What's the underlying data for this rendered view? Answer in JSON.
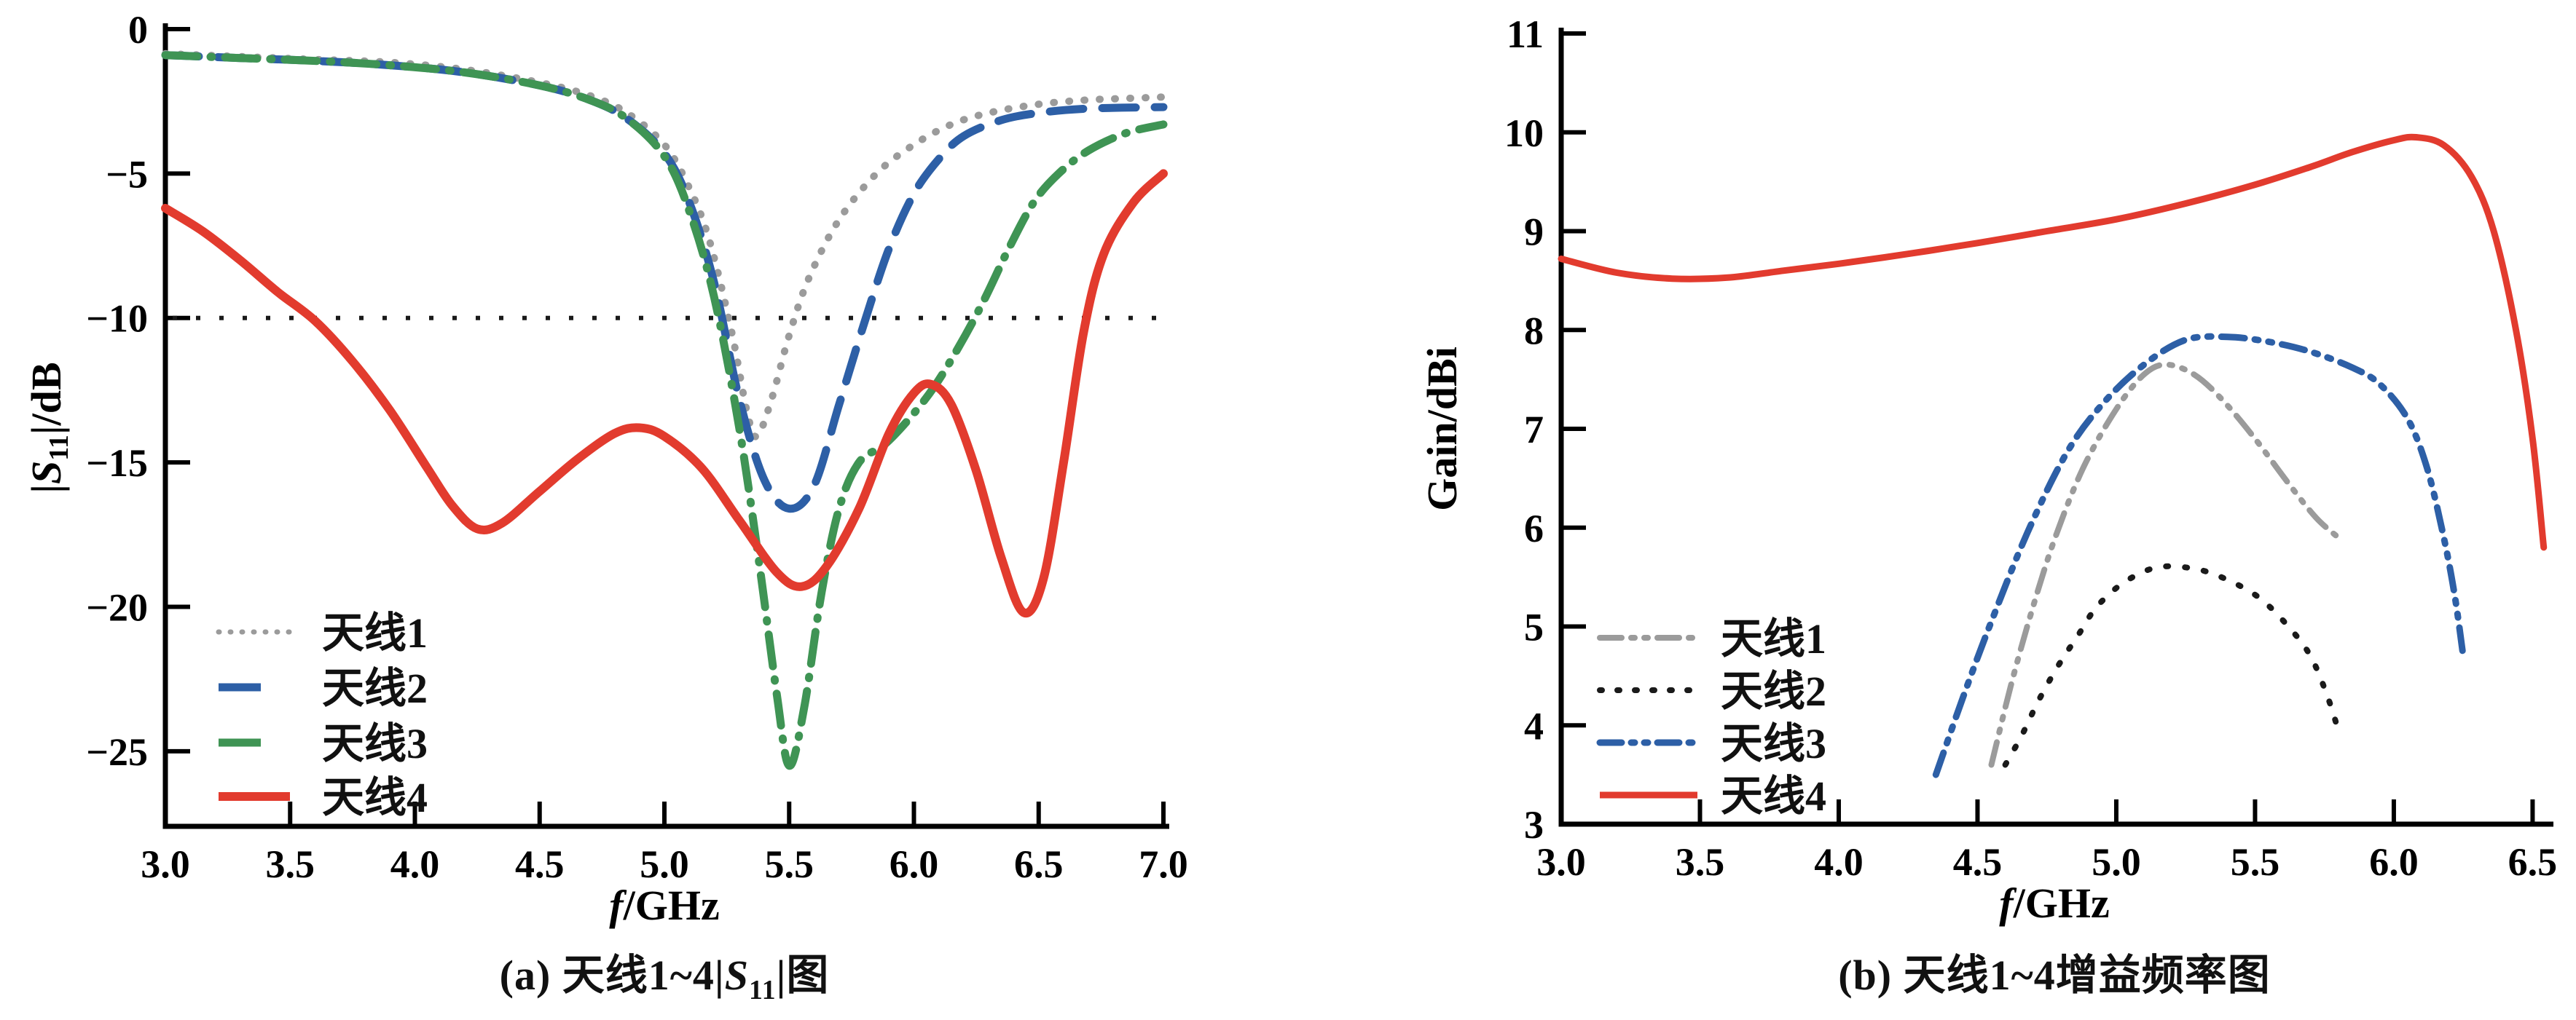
{
  "figure": {
    "background": "#ffffff"
  },
  "colors": {
    "antenna1_left": "#9b9b9b",
    "antenna2_left": "#2d5fa6",
    "antenna3_left": "#3f9454",
    "antenna4_left": "#e23b2e",
    "antenna1_right": "#9b9b9b",
    "antenna2_right": "#1a1a1a",
    "antenna3_right": "#2d5fa6",
    "antenna4_right": "#e23b2e",
    "axis": "#000000",
    "reference_line": "#1a1a1a"
  },
  "chart_data": [
    {
      "type": "line",
      "id": "s11",
      "title": "(a) 天线1~4|S11|图",
      "caption_parts": [
        {
          "t": "(a) 天线1~4|"
        },
        {
          "t": "S"
        },
        {
          "t": "11"
        },
        {
          "t": "|图"
        }
      ],
      "xlabel": "f/GHz",
      "xlabel_parts": [
        {
          "t": "f",
          "style": "italic"
        },
        {
          "t": "/GHz"
        }
      ],
      "ylabel": "|S11|/dB",
      "ylabel_parts": [
        {
          "t": "|"
        },
        {
          "t": "S",
          "style": "italic"
        },
        {
          "t": "11",
          "style": "sub"
        },
        {
          "t": "|/dB"
        }
      ],
      "xlim": [
        3.0,
        7.0
      ],
      "ylim": [
        -27.6,
        0
      ],
      "grid": false,
      "legend_position": "lower-left",
      "x_tick_values": [
        3.0,
        3.5,
        4.0,
        4.5,
        5.0,
        5.5,
        6.0,
        6.5,
        7.0
      ],
      "x_tick_labels": [
        "3.0",
        "3.5",
        "4.0",
        "4.5",
        "5.0",
        "5.5",
        "6.0",
        "6.5",
        "7.0"
      ],
      "y_tick_values": [
        0,
        -5,
        -10,
        -15,
        -20,
        -25
      ],
      "y_tick_labels": [
        "0",
        "−5",
        "−10",
        "−15",
        "−20",
        "−25"
      ],
      "reference_line_y": -10,
      "plot": {
        "x0": 227,
        "y0": 40,
        "x1": 1597,
        "y1": 1135
      },
      "legend": {
        "swatch_x0": 300,
        "swatch_x1": 398,
        "label_x": 442,
        "rows": [
          868,
          944,
          1020,
          1094
        ],
        "font": 58
      },
      "series": [
        {
          "name": "天线1",
          "color": "#9b9b9b",
          "width": 10,
          "dash": "1 20",
          "cap": "round",
          "legend_swatch": {
            "width": 7,
            "dash": "1 15",
            "cap": "round"
          },
          "points": [
            [
              3.0,
              -0.85
            ],
            [
              3.3,
              -0.95
            ],
            [
              3.6,
              -1.05
            ],
            [
              3.9,
              -1.15
            ],
            [
              4.2,
              -1.4
            ],
            [
              4.5,
              -1.85
            ],
            [
              4.7,
              -2.3
            ],
            [
              4.85,
              -2.9
            ],
            [
              5.0,
              -4.0
            ],
            [
              5.1,
              -5.5
            ],
            [
              5.18,
              -7.3
            ],
            [
              5.27,
              -10.5
            ],
            [
              5.33,
              -13.2
            ],
            [
              5.37,
              -14.1
            ],
            [
              5.43,
              -12.8
            ],
            [
              5.5,
              -10.6
            ],
            [
              5.58,
              -8.6
            ],
            [
              5.7,
              -6.6
            ],
            [
              5.85,
              -5.0
            ],
            [
              6.0,
              -4.0
            ],
            [
              6.15,
              -3.3
            ],
            [
              6.3,
              -2.9
            ],
            [
              6.5,
              -2.6
            ],
            [
              6.7,
              -2.45
            ],
            [
              6.85,
              -2.4
            ],
            [
              7.0,
              -2.35
            ]
          ]
        },
        {
          "name": "天线2",
          "color": "#2d5fa6",
          "width": 11,
          "dash": "46 26",
          "cap": "round",
          "legend_swatch": {
            "width": 11,
            "dash": "58 60",
            "cap": "butt"
          },
          "points": [
            [
              3.0,
              -0.9
            ],
            [
              3.3,
              -1.0
            ],
            [
              3.6,
              -1.1
            ],
            [
              3.9,
              -1.25
            ],
            [
              4.2,
              -1.5
            ],
            [
              4.5,
              -1.95
            ],
            [
              4.7,
              -2.45
            ],
            [
              4.85,
              -3.1
            ],
            [
              5.0,
              -4.3
            ],
            [
              5.1,
              -6.0
            ],
            [
              5.2,
              -8.8
            ],
            [
              5.3,
              -12.8
            ],
            [
              5.4,
              -15.6
            ],
            [
              5.5,
              -16.6
            ],
            [
              5.6,
              -15.8
            ],
            [
              5.7,
              -13.0
            ],
            [
              5.8,
              -10.2
            ],
            [
              5.9,
              -7.6
            ],
            [
              6.0,
              -5.7
            ],
            [
              6.1,
              -4.5
            ],
            [
              6.2,
              -3.7
            ],
            [
              6.35,
              -3.15
            ],
            [
              6.5,
              -2.9
            ],
            [
              6.7,
              -2.75
            ],
            [
              7.0,
              -2.7
            ]
          ]
        },
        {
          "name": "天线3",
          "color": "#3f9454",
          "width": 11,
          "dash": "44 18 2 18",
          "cap": "round",
          "legend_swatch": {
            "width": 11,
            "dash": "58 60",
            "cap": "butt"
          },
          "points": [
            [
              3.0,
              -0.9
            ],
            [
              3.3,
              -1.0
            ],
            [
              3.6,
              -1.1
            ],
            [
              3.9,
              -1.25
            ],
            [
              4.2,
              -1.5
            ],
            [
              4.5,
              -1.95
            ],
            [
              4.7,
              -2.45
            ],
            [
              4.85,
              -3.1
            ],
            [
              5.0,
              -4.4
            ],
            [
              5.1,
              -6.3
            ],
            [
              5.2,
              -9.3
            ],
            [
              5.3,
              -13.8
            ],
            [
              5.38,
              -18.5
            ],
            [
              5.45,
              -23.0
            ],
            [
              5.5,
              -25.5
            ],
            [
              5.56,
              -23.5
            ],
            [
              5.63,
              -19.5
            ],
            [
              5.7,
              -16.6
            ],
            [
              5.78,
              -15.0
            ],
            [
              5.88,
              -14.4
            ],
            [
              5.98,
              -13.5
            ],
            [
              6.08,
              -12.4
            ],
            [
              6.18,
              -11.0
            ],
            [
              6.28,
              -9.4
            ],
            [
              6.38,
              -7.6
            ],
            [
              6.48,
              -6.0
            ],
            [
              6.58,
              -5.0
            ],
            [
              6.7,
              -4.2
            ],
            [
              6.85,
              -3.6
            ],
            [
              7.0,
              -3.3
            ]
          ]
        },
        {
          "name": "天线4",
          "color": "#e23b2e",
          "width": 12,
          "dash": null,
          "cap": "round",
          "legend_swatch": {
            "width": 12,
            "dash": null,
            "cap": "butt"
          },
          "points": [
            [
              3.0,
              -6.2
            ],
            [
              3.15,
              -7.0
            ],
            [
              3.3,
              -8.0
            ],
            [
              3.45,
              -9.1
            ],
            [
              3.6,
              -10.1
            ],
            [
              3.75,
              -11.5
            ],
            [
              3.9,
              -13.2
            ],
            [
              4.05,
              -15.2
            ],
            [
              4.15,
              -16.5
            ],
            [
              4.25,
              -17.3
            ],
            [
              4.35,
              -17.1
            ],
            [
              4.5,
              -16.0
            ],
            [
              4.65,
              -14.9
            ],
            [
              4.8,
              -14.0
            ],
            [
              4.9,
              -13.8
            ],
            [
              5.0,
              -14.1
            ],
            [
              5.15,
              -15.2
            ],
            [
              5.3,
              -17.0
            ],
            [
              5.45,
              -18.8
            ],
            [
              5.55,
              -19.3
            ],
            [
              5.65,
              -18.6
            ],
            [
              5.78,
              -16.6
            ],
            [
              5.9,
              -14.0
            ],
            [
              6.0,
              -12.6
            ],
            [
              6.07,
              -12.3
            ],
            [
              6.15,
              -13.0
            ],
            [
              6.25,
              -15.3
            ],
            [
              6.35,
              -18.3
            ],
            [
              6.44,
              -20.2
            ],
            [
              6.52,
              -19.0
            ],
            [
              6.6,
              -15.0
            ],
            [
              6.68,
              -10.5
            ],
            [
              6.76,
              -7.8
            ],
            [
              6.88,
              -6.0
            ],
            [
              7.0,
              -5.0
            ]
          ]
        }
      ]
    },
    {
      "type": "line",
      "id": "gain",
      "title": "(b) 天线1~4增益频率图",
      "caption_parts": [
        {
          "t": "(b) 天线1~4增益频率图"
        }
      ],
      "xlabel": "f/GHz",
      "xlabel_parts": [
        {
          "t": "f",
          "style": "italic"
        },
        {
          "t": "/GHz"
        }
      ],
      "ylabel": "Gain/dBi",
      "ylabel_parts": [
        {
          "t": "Gain/dBi"
        }
      ],
      "xlim": [
        3.0,
        6.554
      ],
      "ylim": [
        3,
        11
      ],
      "grid": false,
      "legend_position": "center-left",
      "x_tick_values": [
        3.0,
        3.5,
        4.0,
        4.5,
        5.0,
        5.5,
        6.0,
        6.5
      ],
      "x_tick_labels": [
        "3.0",
        "3.5",
        "4.0",
        "4.5",
        "5.0",
        "5.5",
        "6.0",
        "6.5"
      ],
      "y_tick_values": [
        11,
        10,
        9,
        8,
        7,
        6,
        5,
        4,
        3
      ],
      "y_tick_labels": [
        "11",
        "10",
        "9",
        "8",
        "7",
        "6",
        "5",
        "4",
        "3"
      ],
      "reference_line_y": null,
      "plot": {
        "x0": 2143,
        "y0": 46,
        "x1": 3497,
        "y1": 1132
      },
      "legend": {
        "swatch_x0": 2196,
        "swatch_x1": 2330,
        "label_x": 2362,
        "rows": [
          876,
          948,
          1020,
          1092
        ],
        "font": 58
      },
      "series": [
        {
          "name": "天线1",
          "color": "#9b9b9b",
          "width": 8,
          "dash": "32 14 4 14 4 14",
          "cap": "round",
          "legend_swatch": {
            "width": 8,
            "dash": "30 13 5 13 5 13",
            "cap": "round"
          },
          "points": [
            [
              4.55,
              3.6
            ],
            [
              4.62,
              4.4
            ],
            [
              4.7,
              5.2
            ],
            [
              4.78,
              5.9
            ],
            [
              4.88,
              6.6
            ],
            [
              5.0,
              7.2
            ],
            [
              5.1,
              7.55
            ],
            [
              5.18,
              7.65
            ],
            [
              5.28,
              7.55
            ],
            [
              5.38,
              7.3
            ],
            [
              5.5,
              6.9
            ],
            [
              5.62,
              6.45
            ],
            [
              5.72,
              6.1
            ],
            [
              5.8,
              5.9
            ]
          ]
        },
        {
          "name": "天线2",
          "color": "#1a1a1a",
          "width": 8,
          "dash": "3 23",
          "cap": "round",
          "legend_swatch": {
            "width": 8,
            "dash": "3 21",
            "cap": "round"
          },
          "points": [
            [
              4.6,
              3.6
            ],
            [
              4.66,
              3.9
            ],
            [
              4.72,
              4.25
            ],
            [
              4.79,
              4.6
            ],
            [
              4.86,
              4.9
            ],
            [
              4.93,
              5.2
            ],
            [
              5.03,
              5.45
            ],
            [
              5.15,
              5.6
            ],
            [
              5.29,
              5.58
            ],
            [
              5.41,
              5.46
            ],
            [
              5.52,
              5.28
            ],
            [
              5.62,
              5.0
            ],
            [
              5.7,
              4.7
            ],
            [
              5.76,
              4.3
            ],
            [
              5.8,
              3.95
            ]
          ]
        },
        {
          "name": "天线3",
          "color": "#2d5fa6",
          "width": 9,
          "dash": "32 14 5 14 5 14",
          "cap": "round",
          "legend_swatch": {
            "width": 9,
            "dash": "30 13 5 13 5 13",
            "cap": "round"
          },
          "points": [
            [
              4.35,
              3.5
            ],
            [
              4.45,
              4.3
            ],
            [
              4.55,
              5.05
            ],
            [
              4.68,
              5.95
            ],
            [
              4.82,
              6.75
            ],
            [
              4.95,
              7.25
            ],
            [
              5.1,
              7.65
            ],
            [
              5.25,
              7.9
            ],
            [
              5.4,
              7.93
            ],
            [
              5.55,
              7.88
            ],
            [
              5.7,
              7.78
            ],
            [
              5.85,
              7.62
            ],
            [
              5.95,
              7.45
            ],
            [
              6.05,
              7.1
            ],
            [
              6.12,
              6.6
            ],
            [
              6.18,
              5.9
            ],
            [
              6.22,
              5.3
            ],
            [
              6.25,
              4.7
            ]
          ]
        },
        {
          "name": "天线4",
          "color": "#e23b2e",
          "width": 9,
          "dash": null,
          "cap": "round",
          "legend_swatch": {
            "width": 9,
            "dash": null,
            "cap": "butt"
          },
          "points": [
            [
              3.0,
              8.72
            ],
            [
              3.2,
              8.58
            ],
            [
              3.4,
              8.52
            ],
            [
              3.6,
              8.53
            ],
            [
              3.8,
              8.6
            ],
            [
              4.0,
              8.67
            ],
            [
              4.25,
              8.77
            ],
            [
              4.5,
              8.88
            ],
            [
              4.75,
              9.0
            ],
            [
              5.0,
              9.12
            ],
            [
              5.25,
              9.28
            ],
            [
              5.5,
              9.47
            ],
            [
              5.7,
              9.65
            ],
            [
              5.85,
              9.8
            ],
            [
              6.0,
              9.92
            ],
            [
              6.08,
              9.95
            ],
            [
              6.18,
              9.87
            ],
            [
              6.28,
              9.55
            ],
            [
              6.36,
              9.0
            ],
            [
              6.44,
              8.0
            ],
            [
              6.5,
              6.9
            ],
            [
              6.54,
              5.8
            ]
          ]
        }
      ]
    }
  ],
  "style": {
    "axis_width": 7,
    "tick_len": 34,
    "tick_width": 6,
    "tick_font": 54,
    "axis_label_font": 58,
    "ref_dash": "6 26",
    "ref_width": 6
  }
}
